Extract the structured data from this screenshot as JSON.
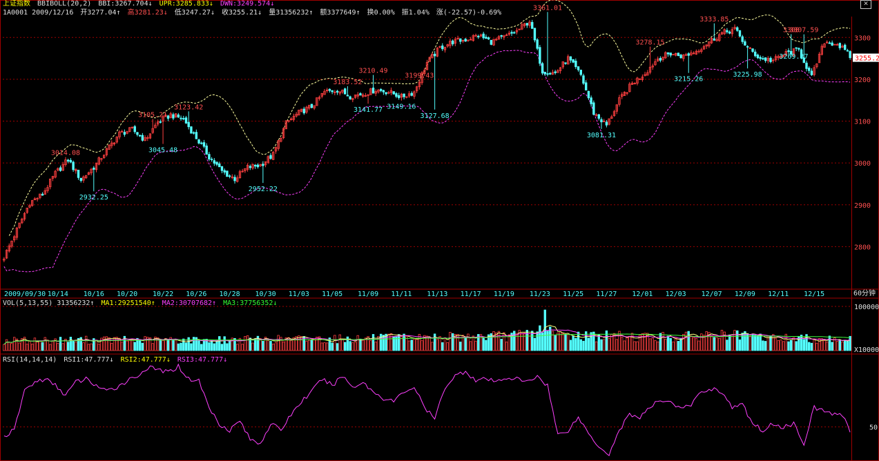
{
  "header": {
    "index_name": "上证指数",
    "indicator": "BBIBOLL(20,2)",
    "bbi": "BBI:3267.704↓",
    "upr": "UPR:3285.833↓",
    "dwn": "DWN:3249.574↓"
  },
  "quote": {
    "code_date": "1A0001 2009/12/16",
    "open": "开3277.04↑",
    "high": "高3281.23↓",
    "low": "低3247.27↓",
    "close": "收3255.21↓",
    "volume": "量31356232↑",
    "amount": "额3377649↑",
    "turnover": "换0.00%",
    "amplitude": "振1.04%",
    "change": "涨(-22.57)-0.69%"
  },
  "vol_header": {
    "label": "VOL(5,13,55) 31356232↑",
    "ma1": "MA1:29251540↑",
    "ma2": "MA2:30707682↑",
    "ma3": "MA3:37756352↓"
  },
  "rsi_header": {
    "label": "RSI(14,14,14)",
    "rsi1": "RSI1:47.777↓",
    "rsi2": "RSI2:47.777↓",
    "rsi3": "RSI3:47.777↓"
  },
  "period_label": "60分钟",
  "current_price_tag": "3255.2",
  "colors": {
    "up": "#ff4040",
    "down": "#54ffff",
    "grid": "#a00000",
    "upper_band": "#ffffa0",
    "lower_band": "#ff40ff",
    "rsi": "#ff40ff",
    "ma1": "#ffff80",
    "ma2": "#ff40ff",
    "ma3": "#40ff40"
  },
  "chart_data": [
    {
      "type": "candlestick",
      "title": "上证指数 BBIBOLL(20,2)",
      "x_tick_labels": [
        "2009/09/30",
        "10/14",
        "10/16",
        "10/20",
        "10/22",
        "10/26",
        "10/28",
        "10/30",
        "11/03",
        "11/05",
        "11/09",
        "11/11",
        "11/13",
        "11/17",
        "11/19",
        "11/23",
        "11/25",
        "11/27",
        "12/01",
        "12/03",
        "12/07",
        "12/09",
        "12/11",
        "12/15"
      ],
      "y_ticks": [
        2800,
        2900,
        3000,
        3100,
        3200,
        3300
      ],
      "ylim": [
        2700,
        3350
      ],
      "close_anchors": [
        {
          "i": 0,
          "v": 2775
        },
        {
          "i": 5,
          "v": 2840
        },
        {
          "i": 10,
          "v": 2905
        },
        {
          "i": 15,
          "v": 2925
        },
        {
          "i": 20,
          "v": 2975
        },
        {
          "i": 25,
          "v": 3008
        },
        {
          "i": 30,
          "v": 2960
        },
        {
          "i": 35,
          "v": 2990
        },
        {
          "i": 40,
          "v": 3030
        },
        {
          "i": 45,
          "v": 3070
        },
        {
          "i": 50,
          "v": 3080
        },
        {
          "i": 55,
          "v": 3055
        },
        {
          "i": 60,
          "v": 3098
        },
        {
          "i": 65,
          "v": 3115
        },
        {
          "i": 70,
          "v": 3105
        },
        {
          "i": 75,
          "v": 3060
        },
        {
          "i": 80,
          "v": 3015
        },
        {
          "i": 85,
          "v": 2980
        },
        {
          "i": 90,
          "v": 2962
        },
        {
          "i": 95,
          "v": 2990
        },
        {
          "i": 100,
          "v": 2995
        },
        {
          "i": 105,
          "v": 3020
        },
        {
          "i": 110,
          "v": 3095
        },
        {
          "i": 115,
          "v": 3120
        },
        {
          "i": 120,
          "v": 3135
        },
        {
          "i": 125,
          "v": 3170
        },
        {
          "i": 130,
          "v": 3175
        },
        {
          "i": 135,
          "v": 3160
        },
        {
          "i": 140,
          "v": 3165
        },
        {
          "i": 145,
          "v": 3175
        },
        {
          "i": 150,
          "v": 3170
        },
        {
          "i": 155,
          "v": 3158
        },
        {
          "i": 160,
          "v": 3170
        },
        {
          "i": 165,
          "v": 3240
        },
        {
          "i": 170,
          "v": 3275
        },
        {
          "i": 175,
          "v": 3290
        },
        {
          "i": 180,
          "v": 3295
        },
        {
          "i": 185,
          "v": 3305
        },
        {
          "i": 190,
          "v": 3290
        },
        {
          "i": 195,
          "v": 3300
        },
        {
          "i": 200,
          "v": 3315
        },
        {
          "i": 205,
          "v": 3340
        },
        {
          "i": 210,
          "v": 3220
        },
        {
          "i": 215,
          "v": 3215
        },
        {
          "i": 220,
          "v": 3250
        },
        {
          "i": 225,
          "v": 3210
        },
        {
          "i": 230,
          "v": 3120
        },
        {
          "i": 235,
          "v": 3090
        },
        {
          "i": 240,
          "v": 3150
        },
        {
          "i": 245,
          "v": 3190
        },
        {
          "i": 250,
          "v": 3215
        },
        {
          "i": 255,
          "v": 3250
        },
        {
          "i": 260,
          "v": 3262
        },
        {
          "i": 265,
          "v": 3255
        },
        {
          "i": 270,
          "v": 3268
        },
        {
          "i": 275,
          "v": 3290
        },
        {
          "i": 280,
          "v": 3310
        },
        {
          "i": 285,
          "v": 3320
        },
        {
          "i": 290,
          "v": 3275
        },
        {
          "i": 295,
          "v": 3250
        },
        {
          "i": 300,
          "v": 3245
        },
        {
          "i": 305,
          "v": 3262
        },
        {
          "i": 310,
          "v": 3270
        },
        {
          "i": 315,
          "v": 3205
        },
        {
          "i": 320,
          "v": 3290
        },
        {
          "i": 325,
          "v": 3285
        },
        {
          "i": 330,
          "v": 3255
        }
      ],
      "annotations": [
        {
          "i": 24,
          "v": 3014.08,
          "label": "3014.08",
          "color": "red",
          "pos": "above"
        },
        {
          "i": 35,
          "v": 2932.25,
          "label": "2932.25",
          "color": "cyan",
          "pos": "below"
        },
        {
          "i": 58,
          "v": 3105.21,
          "label": "3105.21",
          "color": "red",
          "pos": "above"
        },
        {
          "i": 62,
          "v": 3045.48,
          "label": "3045.48",
          "color": "cyan",
          "pos": "below"
        },
        {
          "i": 72,
          "v": 3123.42,
          "label": "3123.42",
          "color": "red",
          "pos": "above"
        },
        {
          "i": 101,
          "v": 2952.22,
          "label": "2952.22",
          "color": "cyan",
          "pos": "below"
        },
        {
          "i": 134,
          "v": 3183.52,
          "label": "3183.52",
          "color": "red",
          "pos": "above"
        },
        {
          "i": 144,
          "v": 3210.49,
          "label": "3210.49",
          "color": "red",
          "pos": "above"
        },
        {
          "i": 142,
          "v": 3141.77,
          "label": "3141.77",
          "color": "cyan",
          "pos": "below"
        },
        {
          "i": 162,
          "v": 3199.43,
          "label": "3199.43",
          "color": "red",
          "pos": "above"
        },
        {
          "i": 155,
          "v": 3149.16,
          "label": "3149.16",
          "color": "cyan",
          "pos": "below"
        },
        {
          "i": 168,
          "v": 3127.68,
          "label": "3127.68",
          "color": "cyan",
          "pos": "below"
        },
        {
          "i": 212,
          "v": 3361.01,
          "label": "3361.01",
          "color": "red",
          "pos": "above"
        },
        {
          "i": 233,
          "v": 3081.31,
          "label": "3081.31",
          "color": "cyan",
          "pos": "below"
        },
        {
          "i": 252,
          "v": 3278.15,
          "label": "3278.15",
          "color": "red",
          "pos": "above"
        },
        {
          "i": 267,
          "v": 3215.26,
          "label": "3215.26",
          "color": "cyan",
          "pos": "below"
        },
        {
          "i": 277,
          "v": 3333.85,
          "label": "3333.85",
          "color": "red",
          "pos": "above"
        },
        {
          "i": 290,
          "v": 3225.98,
          "label": "3225.98",
          "color": "cyan",
          "pos": "below"
        },
        {
          "i": 307,
          "v": 3308.0,
          "label": "3308",
          "color": "red",
          "pos": "above"
        },
        {
          "i": 312,
          "v": 3307.59,
          "label": "3307.59",
          "color": "red",
          "pos": "above"
        },
        {
          "i": 308,
          "v": 3269.37,
          "label": "3269.37",
          "color": "cyan",
          "pos": "below"
        }
      ]
    },
    {
      "type": "bar",
      "title": "VOL(5,13,55)",
      "y_tick_labels": [
        "100000",
        "X10000"
      ],
      "volume_anchors": [
        {
          "i": 0,
          "v": 22
        },
        {
          "i": 40,
          "v": 24
        },
        {
          "i": 80,
          "v": 23
        },
        {
          "i": 120,
          "v": 26
        },
        {
          "i": 160,
          "v": 28
        },
        {
          "i": 200,
          "v": 33
        },
        {
          "i": 210,
          "v": 45
        },
        {
          "i": 215,
          "v": 35
        },
        {
          "i": 240,
          "v": 32
        },
        {
          "i": 265,
          "v": 30
        },
        {
          "i": 275,
          "v": 36
        },
        {
          "i": 300,
          "v": 28
        },
        {
          "i": 330,
          "v": 26
        }
      ],
      "ylim": [
        0,
        100
      ]
    },
    {
      "type": "line",
      "title": "RSI(14,14,14)",
      "y_tick_labels": [
        "50"
      ],
      "ylim": [
        30,
        90
      ],
      "rsi_anchors": [
        {
          "i": 0,
          "v": 44
        },
        {
          "i": 4,
          "v": 48
        },
        {
          "i": 8,
          "v": 73
        },
        {
          "i": 12,
          "v": 78
        },
        {
          "i": 16,
          "v": 80
        },
        {
          "i": 20,
          "v": 76
        },
        {
          "i": 24,
          "v": 70
        },
        {
          "i": 28,
          "v": 78
        },
        {
          "i": 32,
          "v": 80
        },
        {
          "i": 36,
          "v": 76
        },
        {
          "i": 40,
          "v": 72
        },
        {
          "i": 44,
          "v": 75
        },
        {
          "i": 48,
          "v": 79
        },
        {
          "i": 52,
          "v": 82
        },
        {
          "i": 56,
          "v": 87
        },
        {
          "i": 60,
          "v": 86
        },
        {
          "i": 64,
          "v": 84
        },
        {
          "i": 68,
          "v": 88
        },
        {
          "i": 72,
          "v": 80
        },
        {
          "i": 76,
          "v": 79
        },
        {
          "i": 80,
          "v": 62
        },
        {
          "i": 84,
          "v": 52
        },
        {
          "i": 88,
          "v": 48
        },
        {
          "i": 92,
          "v": 54
        },
        {
          "i": 96,
          "v": 42
        },
        {
          "i": 100,
          "v": 40
        },
        {
          "i": 104,
          "v": 52
        },
        {
          "i": 108,
          "v": 48
        },
        {
          "i": 112,
          "v": 58
        },
        {
          "i": 116,
          "v": 66
        },
        {
          "i": 120,
          "v": 72
        },
        {
          "i": 124,
          "v": 80
        },
        {
          "i": 128,
          "v": 76
        },
        {
          "i": 132,
          "v": 82
        },
        {
          "i": 136,
          "v": 75
        },
        {
          "i": 140,
          "v": 78
        },
        {
          "i": 144,
          "v": 72
        },
        {
          "i": 148,
          "v": 68
        },
        {
          "i": 152,
          "v": 66
        },
        {
          "i": 156,
          "v": 72
        },
        {
          "i": 160,
          "v": 75
        },
        {
          "i": 164,
          "v": 62
        },
        {
          "i": 168,
          "v": 55
        },
        {
          "i": 172,
          "v": 75
        },
        {
          "i": 176,
          "v": 82
        },
        {
          "i": 180,
          "v": 85
        },
        {
          "i": 184,
          "v": 79
        },
        {
          "i": 188,
          "v": 80
        },
        {
          "i": 192,
          "v": 78
        },
        {
          "i": 196,
          "v": 81
        },
        {
          "i": 200,
          "v": 80
        },
        {
          "i": 204,
          "v": 78
        },
        {
          "i": 208,
          "v": 82
        },
        {
          "i": 212,
          "v": 76
        },
        {
          "i": 216,
          "v": 45
        },
        {
          "i": 220,
          "v": 48
        },
        {
          "i": 224,
          "v": 56
        },
        {
          "i": 228,
          "v": 46
        },
        {
          "i": 232,
          "v": 38
        },
        {
          "i": 236,
          "v": 33
        },
        {
          "i": 240,
          "v": 48
        },
        {
          "i": 244,
          "v": 58
        },
        {
          "i": 248,
          "v": 56
        },
        {
          "i": 252,
          "v": 62
        },
        {
          "i": 256,
          "v": 67
        },
        {
          "i": 260,
          "v": 66
        },
        {
          "i": 264,
          "v": 61
        },
        {
          "i": 268,
          "v": 64
        },
        {
          "i": 272,
          "v": 72
        },
        {
          "i": 276,
          "v": 74
        },
        {
          "i": 280,
          "v": 72
        },
        {
          "i": 284,
          "v": 62
        },
        {
          "i": 288,
          "v": 64
        },
        {
          "i": 292,
          "v": 52
        },
        {
          "i": 296,
          "v": 48
        },
        {
          "i": 300,
          "v": 52
        },
        {
          "i": 304,
          "v": 50
        },
        {
          "i": 308,
          "v": 52
        },
        {
          "i": 312,
          "v": 40
        },
        {
          "i": 316,
          "v": 62
        },
        {
          "i": 320,
          "v": 60
        },
        {
          "i": 324,
          "v": 58
        },
        {
          "i": 328,
          "v": 56
        },
        {
          "i": 330,
          "v": 48
        }
      ]
    }
  ]
}
